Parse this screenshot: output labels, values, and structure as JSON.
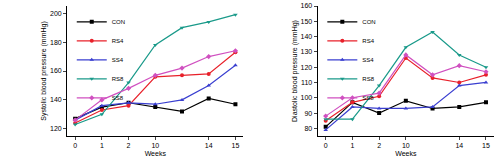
{
  "chart_data": [
    {
      "type": "line",
      "x_label": "Weeks",
      "y_label": "Systolic blood pressure (mmHg)",
      "categories": [
        "0",
        "1",
        "2",
        "10",
        null,
        "14",
        "15"
      ],
      "ylim": [
        115,
        205
      ],
      "yticks": [
        120,
        140,
        160,
        180,
        200
      ],
      "legend": "upper left",
      "series": [
        {
          "name": "CON",
          "color": "#000000",
          "marker": "square",
          "values": [
            127,
            135,
            138,
            135,
            132,
            141,
            137
          ]
        },
        {
          "name": "RS4",
          "color": "#e8202a",
          "marker": "circle",
          "values": [
            124,
            133,
            136,
            156,
            157,
            158,
            173
          ]
        },
        {
          "name": "SS4",
          "color": "#3a3fd0",
          "marker": "triangle-up",
          "values": [
            126,
            136,
            138,
            137,
            140,
            150,
            164
          ]
        },
        {
          "name": "RS8",
          "color": "#1a9a8a",
          "marker": "triangle-down",
          "values": [
            123,
            130,
            152,
            178,
            190,
            194,
            199
          ]
        },
        {
          "name": "SS8",
          "color": "#d050c0",
          "marker": "diamond",
          "values": [
            126,
            140,
            148,
            157,
            162,
            170,
            174
          ]
        }
      ]
    },
    {
      "type": "line",
      "x_label": "Weeks",
      "y_label": "Diastolic blood pressure (mmHg)",
      "categories": [
        "0",
        "1",
        "2",
        "10",
        null,
        "14",
        "15"
      ],
      "ylim": [
        75,
        160
      ],
      "yticks": [
        80,
        90,
        100,
        110,
        120,
        130,
        140,
        150,
        160
      ],
      "legend": "upper left",
      "series": [
        {
          "name": "CON",
          "color": "#000000",
          "marker": "square",
          "values": [
            81,
            97,
            90,
            98,
            93,
            94,
            97
          ]
        },
        {
          "name": "RS4",
          "color": "#e8202a",
          "marker": "circle",
          "values": [
            85,
            97,
            101,
            126,
            113,
            110,
            115
          ]
        },
        {
          "name": "SS4",
          "color": "#3a3fd0",
          "marker": "triangle-up",
          "values": [
            79,
            94,
            93,
            93,
            94,
            108,
            110
          ]
        },
        {
          "name": "RS8",
          "color": "#1a9a8a",
          "marker": "triangle-down",
          "values": [
            86,
            86,
            108,
            133,
            143,
            128,
            120
          ]
        },
        {
          "name": "SS8",
          "color": "#d050c0",
          "marker": "diamond",
          "values": [
            88,
            100,
            103,
            128,
            115,
            121,
            117
          ]
        }
      ]
    }
  ]
}
